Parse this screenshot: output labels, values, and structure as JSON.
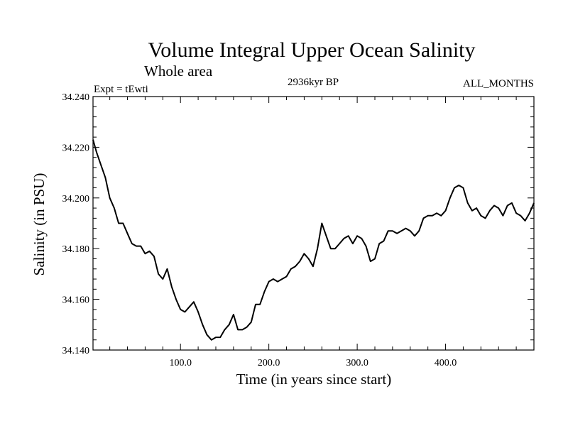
{
  "chart_data": {
    "type": "line",
    "title": "Volume Integral Upper Ocean Salinity",
    "subtitle": "Whole area",
    "left_label": "Expt = tEwti",
    "center_label": "2936kyr BP",
    "right_label": "ALL_MONTHS",
    "xlabel": "Time (in years since start)",
    "ylabel": "Salinity (in PSU)",
    "xlim": [
      1,
      500
    ],
    "ylim": [
      34.14,
      34.24
    ],
    "x_ticks": [
      100,
      200,
      300,
      400
    ],
    "x_tick_labels": [
      "100.0",
      "200.0",
      "300.0",
      "400.0"
    ],
    "y_ticks": [
      34.14,
      34.16,
      34.18,
      34.2,
      34.22,
      34.24
    ],
    "y_tick_labels": [
      "34.140",
      "34.160",
      "34.180",
      "34.200",
      "34.220",
      "34.240"
    ],
    "grid": false,
    "line_color": "#000000",
    "series": [
      {
        "name": "Salinity",
        "x": [
          1,
          5,
          10,
          15,
          20,
          25,
          30,
          35,
          40,
          45,
          50,
          55,
          60,
          65,
          70,
          75,
          80,
          85,
          90,
          95,
          100,
          105,
          110,
          115,
          120,
          125,
          130,
          135,
          140,
          145,
          150,
          155,
          160,
          165,
          170,
          175,
          180,
          185,
          190,
          195,
          200,
          205,
          210,
          215,
          220,
          225,
          230,
          235,
          240,
          245,
          250,
          255,
          260,
          265,
          270,
          275,
          280,
          285,
          290,
          295,
          300,
          305,
          310,
          315,
          320,
          325,
          330,
          335,
          340,
          345,
          350,
          355,
          360,
          365,
          370,
          375,
          380,
          385,
          390,
          395,
          400,
          405,
          410,
          415,
          420,
          425,
          430,
          435,
          440,
          445,
          450,
          455,
          460,
          465,
          470,
          475,
          480,
          485,
          490,
          495,
          500
        ],
        "values": [
          34.223,
          34.218,
          34.213,
          34.208,
          34.2,
          34.196,
          34.19,
          34.19,
          34.186,
          34.182,
          34.181,
          34.181,
          34.178,
          34.179,
          34.177,
          34.17,
          34.168,
          34.172,
          34.165,
          34.16,
          34.156,
          34.155,
          34.157,
          34.159,
          34.155,
          34.15,
          34.146,
          34.144,
          34.145,
          34.145,
          34.148,
          34.15,
          34.154,
          34.148,
          34.148,
          34.149,
          34.151,
          34.158,
          34.158,
          34.163,
          34.167,
          34.168,
          34.167,
          34.168,
          34.169,
          34.172,
          34.173,
          34.175,
          34.178,
          34.176,
          34.173,
          34.18,
          34.19,
          34.185,
          34.18,
          34.18,
          34.182,
          34.184,
          34.185,
          34.182,
          34.185,
          34.184,
          34.181,
          34.175,
          34.176,
          34.182,
          34.183,
          34.187,
          34.187,
          34.186,
          34.187,
          34.188,
          34.187,
          34.185,
          34.187,
          34.192,
          34.193,
          34.193,
          34.194,
          34.193,
          34.195,
          34.2,
          34.204,
          34.205,
          34.204,
          34.198,
          34.195,
          34.196,
          34.193,
          34.192,
          34.195,
          34.197,
          34.196,
          34.193,
          34.197,
          34.198,
          34.194,
          34.193,
          34.191,
          34.194,
          34.198
        ]
      }
    ]
  }
}
